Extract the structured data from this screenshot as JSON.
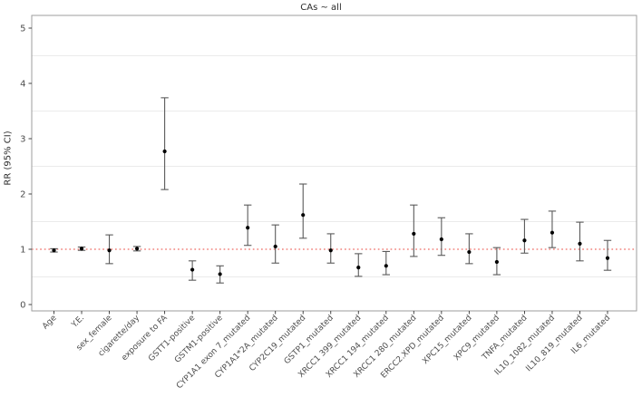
{
  "figure": {
    "title": "CAs ~ all",
    "y_axis_label": "RR (95% CI)",
    "background_color": "#ffffff",
    "panel_border_color": "#9e9e9e",
    "gridline_color": "#ebebeb",
    "tick_color": "#333333",
    "tick_label_color": "#4d4d4d",
    "point_color": "#000000",
    "errorbar_color": "#5a5a5a",
    "reference_line_color": "#f2837d"
  },
  "chart_data": {
    "type": "scatter",
    "subtype": "forest-plot-points-with-95ci-errorbars",
    "title": "CAs ~ all",
    "xlabel": "",
    "ylabel": "RR (95% CI)",
    "ylim": [
      -0.15,
      5.25
    ],
    "y_ticks": [
      0,
      1,
      2,
      3,
      4,
      5
    ],
    "minor_gridlines_y": [
      0.5,
      1.5,
      2.5,
      3.5,
      4.5
    ],
    "grid": "minor-horizontal-only",
    "legend": "none",
    "reference_line_y": 1.0,
    "reference_line_style": "red-dotted",
    "x_tick_label_angle": 45,
    "categories": [
      "Age",
      "Y.E.",
      "sex_female",
      "cigarette/day",
      "exposure to FA",
      "GSTT1-positive",
      "GSTM1-positive",
      "CYP1A1 exon 7_mutated",
      "CYP1A1*2A_mutated",
      "CYP2C19_mutated",
      "GSTP1_mutated",
      "XRCC1 399_mutated",
      "XRCC1 194_mutated",
      "XRCC1 280_mutated",
      "ERCC2.XPD_mutated",
      "XPC15_mutated",
      "XPC9_mutated",
      "TNFA_mutated",
      "IL10_1082_mutated",
      "IL10_819_mutated",
      "IL6_mutated"
    ],
    "series": [
      {
        "name": "RR",
        "values": [
          0.98,
          1.01,
          0.98,
          1.01,
          2.77,
          0.63,
          0.55,
          1.39,
          1.05,
          1.62,
          0.98,
          0.67,
          0.7,
          1.28,
          1.18,
          0.95,
          0.77,
          1.16,
          1.3,
          1.1,
          0.84
        ]
      },
      {
        "name": "CI_lower",
        "values": [
          0.95,
          0.98,
          0.74,
          0.97,
          2.08,
          0.44,
          0.39,
          1.07,
          0.75,
          1.2,
          0.75,
          0.51,
          0.54,
          0.87,
          0.89,
          0.74,
          0.54,
          0.93,
          1.03,
          0.79,
          0.62
        ]
      },
      {
        "name": "CI_upper",
        "values": [
          1.01,
          1.04,
          1.26,
          1.05,
          3.74,
          0.79,
          0.7,
          1.8,
          1.44,
          2.18,
          1.28,
          0.92,
          0.96,
          1.8,
          1.57,
          1.28,
          1.03,
          1.54,
          1.69,
          1.49,
          1.16
        ]
      }
    ]
  }
}
